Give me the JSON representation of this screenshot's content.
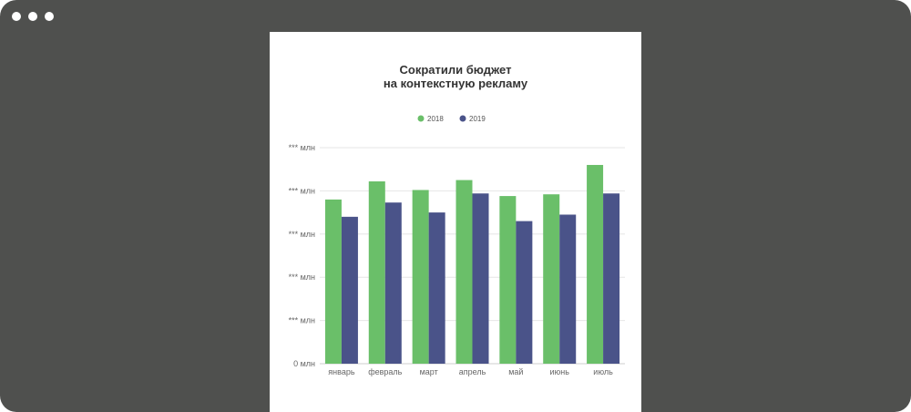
{
  "window": {
    "controls": [
      "dot",
      "dot",
      "dot"
    ]
  },
  "chart_data": {
    "type": "bar",
    "title_lines": [
      "Сократили бюджет",
      "на контекстную рекламу"
    ],
    "categories": [
      "январь",
      "февраль",
      "март",
      "апрель",
      "май",
      "июнь",
      "июль"
    ],
    "series": [
      {
        "name": "2018",
        "color": "#6abf69",
        "values": [
          3.8,
          4.22,
          4.02,
          4.25,
          3.88,
          3.92,
          4.6
        ]
      },
      {
        "name": "2019",
        "color": "#4a5389",
        "values": [
          3.4,
          3.73,
          3.5,
          3.94,
          3.3,
          3.45,
          3.94
        ]
      }
    ],
    "y_tick_labels": [
      "0 млн",
      "*** млн",
      "*** млн",
      "*** млн",
      "*** млн",
      "*** млн"
    ],
    "y_tick_values": [
      0,
      1,
      2,
      3,
      4,
      5
    ],
    "ylim": [
      0,
      5
    ],
    "legend_position": "top-center",
    "grid": true
  }
}
